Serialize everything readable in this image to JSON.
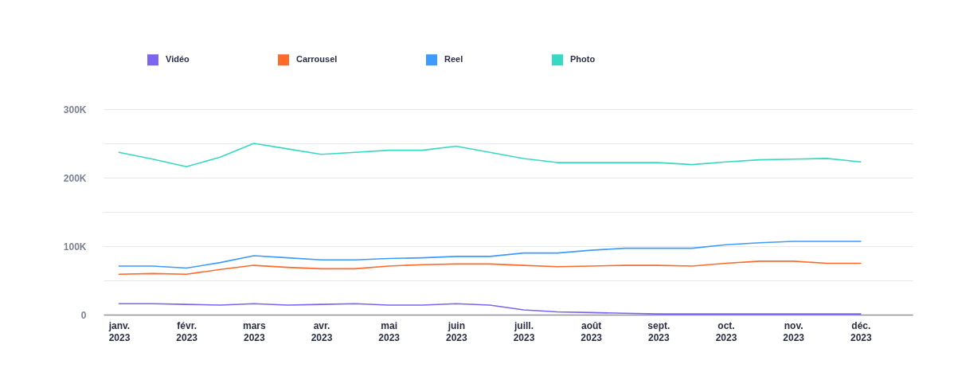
{
  "chart_data": {
    "type": "line",
    "categories": [
      "janv. 2023",
      null,
      "févr. 2023",
      null,
      "mars 2023",
      null,
      "avr. 2023",
      null,
      "mai 2023",
      null,
      "juin 2023",
      null,
      "juill. 2023",
      null,
      "août 2023",
      null,
      "sept. 2023",
      null,
      "oct. 2023",
      null,
      "nov. 2023",
      null,
      "déc. 2023"
    ],
    "ylim": [
      0,
      300000
    ],
    "yticks": [
      0,
      {
        "value": 50000,
        "label": null
      },
      {
        "value": 100000,
        "label": "100K"
      },
      {
        "value": 150000,
        "label": null
      },
      {
        "value": 200000,
        "label": "200K"
      },
      {
        "value": 250000,
        "label": null
      },
      {
        "value": 300000,
        "label": "300K"
      }
    ],
    "grid": "y",
    "legend": "top left",
    "series": [
      {
        "name": "Vidéo",
        "color": "#7d64f0",
        "values": [
          16000,
          16000,
          15000,
          14000,
          16000,
          14000,
          15000,
          16000,
          14000,
          14000,
          16000,
          14000,
          7000,
          4000,
          3000,
          2000,
          1000,
          1000,
          1000,
          1000,
          1000,
          1000,
          1000
        ]
      },
      {
        "name": "Carrousel",
        "color": "#ff6a2a",
        "values": [
          59000,
          60000,
          59000,
          66000,
          72000,
          69000,
          67000,
          67000,
          71000,
          73000,
          74000,
          74000,
          72000,
          70000,
          71000,
          72000,
          72000,
          71000,
          75000,
          78000,
          78000,
          75000,
          75000
        ]
      },
      {
        "name": "Reel",
        "color": "#3d9bff",
        "values": [
          71000,
          71000,
          68000,
          76000,
          86000,
          83000,
          80000,
          80000,
          82000,
          83000,
          85000,
          85000,
          90000,
          90000,
          94000,
          97000,
          97000,
          97000,
          102000,
          105000,
          107000,
          107000,
          107000
        ]
      },
      {
        "name": "Photo",
        "color": "#36d9c1",
        "values": [
          237000,
          227000,
          216000,
          230000,
          250000,
          242000,
          234000,
          237000,
          240000,
          240000,
          246000,
          237000,
          228000,
          222000,
          222000,
          222000,
          222000,
          219000,
          223000,
          226000,
          227000,
          228000,
          223000
        ]
      }
    ]
  }
}
